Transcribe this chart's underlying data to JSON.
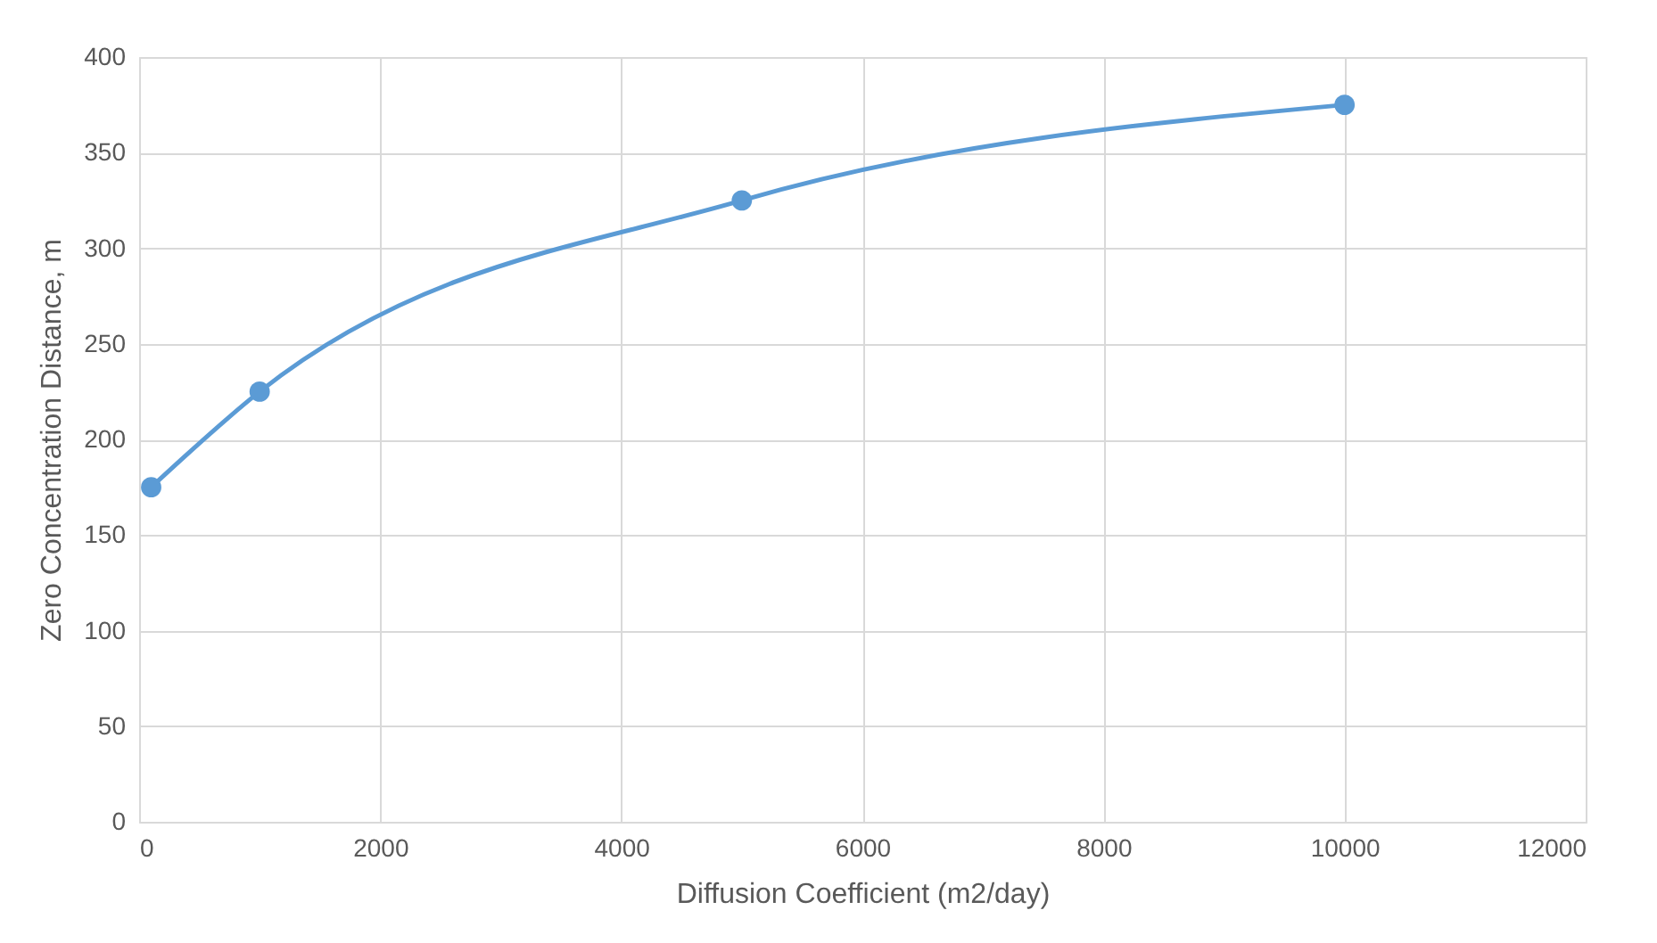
{
  "chart_data": {
    "type": "line",
    "xlabel": "Diffusion Coefficient (m2/day)",
    "ylabel": "Zero Concentration Distance, m",
    "x": [
      100,
      1000,
      5000,
      10000
    ],
    "series": [
      {
        "color": "#5b9bd5",
        "values": [
          175,
          225,
          325,
          375
        ]
      }
    ],
    "xlim": [
      0,
      12000
    ],
    "xticks": [
      0,
      2000,
      4000,
      6000,
      8000,
      10000,
      12000
    ],
    "ylim": [
      0,
      400
    ],
    "yticks": [
      0,
      50,
      100,
      150,
      200,
      250,
      300,
      350,
      400
    ],
    "grid": true,
    "marker": "circle",
    "line_style": "solid"
  }
}
